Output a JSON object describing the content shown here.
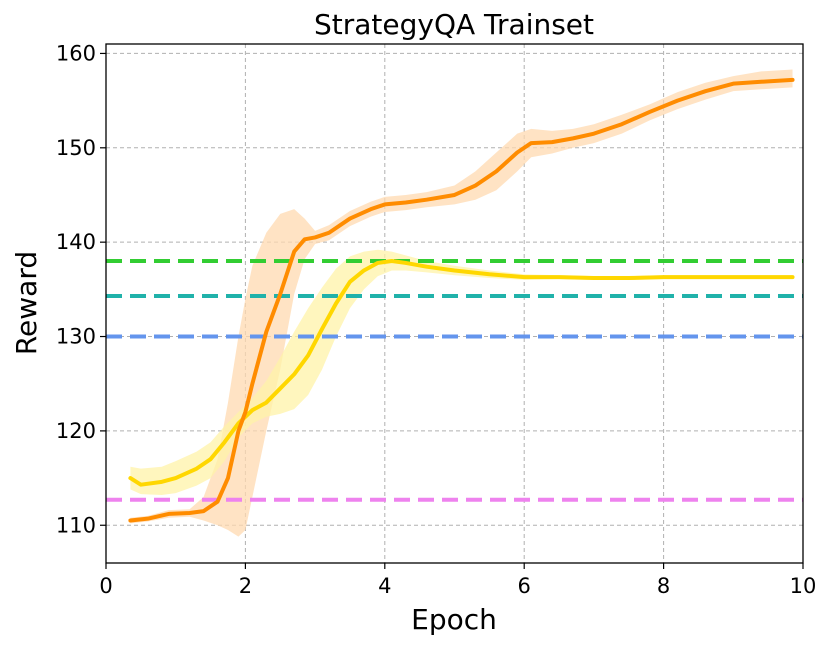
{
  "chart_data": {
    "type": "line",
    "title": "StrategyQA Trainset",
    "xlabel": "Epoch",
    "ylabel": "Reward",
    "xlim": [
      0,
      10
    ],
    "ylim": [
      106,
      161
    ],
    "xticks": [
      0,
      2,
      4,
      6,
      8,
      10
    ],
    "yticks": [
      110,
      120,
      130,
      140,
      150,
      160
    ],
    "grid": true,
    "series": [
      {
        "color": "#FF8C00",
        "band_color": "#FFDAB0",
        "x": [
          0.35,
          0.6,
          0.9,
          1.2,
          1.4,
          1.6,
          1.75,
          1.9,
          2.0,
          2.1,
          2.3,
          2.5,
          2.7,
          2.85,
          3.0,
          3.2,
          3.5,
          3.8,
          4.0,
          4.3,
          4.6,
          5.0,
          5.3,
          5.6,
          5.9,
          6.1,
          6.4,
          6.7,
          7.0,
          7.4,
          7.8,
          8.2,
          8.6,
          9.0,
          9.4,
          9.85
        ],
        "values": [
          110.5,
          110.7,
          111.2,
          111.3,
          111.5,
          112.5,
          115.0,
          120.0,
          122.0,
          125.0,
          130.5,
          134.5,
          139.0,
          140.3,
          140.5,
          141.0,
          142.5,
          143.5,
          144.0,
          144.2,
          144.5,
          145.0,
          146.0,
          147.5,
          149.5,
          150.5,
          150.6,
          151.0,
          151.5,
          152.5,
          153.8,
          155.0,
          156.0,
          156.8,
          157.0,
          157.2
        ],
        "upper": [
          110.8,
          111.0,
          111.6,
          111.7,
          113.0,
          117.0,
          123.0,
          130.0,
          134.0,
          137.5,
          141.0,
          143.0,
          143.5,
          142.5,
          141.2,
          141.8,
          143.3,
          144.3,
          144.8,
          145.0,
          145.3,
          146.0,
          147.5,
          149.5,
          151.5,
          152.0,
          151.8,
          152.0,
          152.5,
          153.5,
          154.6,
          155.9,
          156.9,
          157.6,
          158.1,
          158.3
        ],
        "lower": [
          110.2,
          110.4,
          110.8,
          110.9,
          110.5,
          110.0,
          109.5,
          108.8,
          109.5,
          113.0,
          120.0,
          126.5,
          134.5,
          138.2,
          139.8,
          140.2,
          141.7,
          142.7,
          143.2,
          143.4,
          143.7,
          144.0,
          144.5,
          145.5,
          147.5,
          149.0,
          149.4,
          150.0,
          150.5,
          151.5,
          152.9,
          154.1,
          155.1,
          156.0,
          156.2,
          156.4
        ]
      },
      {
        "color": "#FFD700",
        "band_color": "#FFF3A8",
        "x": [
          0.35,
          0.5,
          0.8,
          1.0,
          1.3,
          1.5,
          1.7,
          1.9,
          2.1,
          2.3,
          2.5,
          2.7,
          2.9,
          3.1,
          3.3,
          3.5,
          3.7,
          3.9,
          4.1,
          4.3,
          4.6,
          5.0,
          5.5,
          6.0,
          6.5,
          7.0,
          7.5,
          8.0,
          8.5,
          9.0,
          9.5,
          9.85
        ],
        "values": [
          115.0,
          114.3,
          114.6,
          115.0,
          116.0,
          117.0,
          118.8,
          120.8,
          122.2,
          123.0,
          124.5,
          126.0,
          128.0,
          130.8,
          133.5,
          135.8,
          137.0,
          137.8,
          138.0,
          137.8,
          137.4,
          137.0,
          136.6,
          136.3,
          136.3,
          136.2,
          136.2,
          136.3,
          136.3,
          136.3,
          136.3,
          136.3
        ],
        "upper": [
          116.2,
          116.0,
          116.2,
          116.8,
          117.8,
          118.8,
          120.5,
          122.0,
          123.5,
          125.3,
          127.8,
          130.5,
          133.0,
          135.2,
          137.2,
          138.5,
          139.0,
          139.2,
          139.0,
          138.6,
          138.0,
          137.5,
          137.0,
          136.6,
          136.5,
          136.4,
          136.4,
          136.5,
          136.5,
          136.5,
          136.5,
          136.5
        ],
        "lower": [
          113.8,
          113.3,
          113.2,
          113.4,
          114.2,
          115.0,
          116.8,
          119.3,
          120.8,
          121.5,
          121.8,
          122.3,
          123.8,
          126.5,
          130.0,
          133.0,
          135.0,
          136.4,
          137.0,
          137.0,
          136.8,
          136.5,
          136.2,
          136.0,
          136.1,
          136.0,
          136.0,
          136.1,
          136.1,
          136.1,
          136.1,
          136.1
        ]
      }
    ],
    "reference_lines": [
      {
        "value": 138.0,
        "color": "#32CD32"
      },
      {
        "value": 134.3,
        "color": "#20B2AA"
      },
      {
        "value": 130.0,
        "color": "#6495ED"
      },
      {
        "value": 112.7,
        "color": "#EE82EE"
      }
    ]
  }
}
